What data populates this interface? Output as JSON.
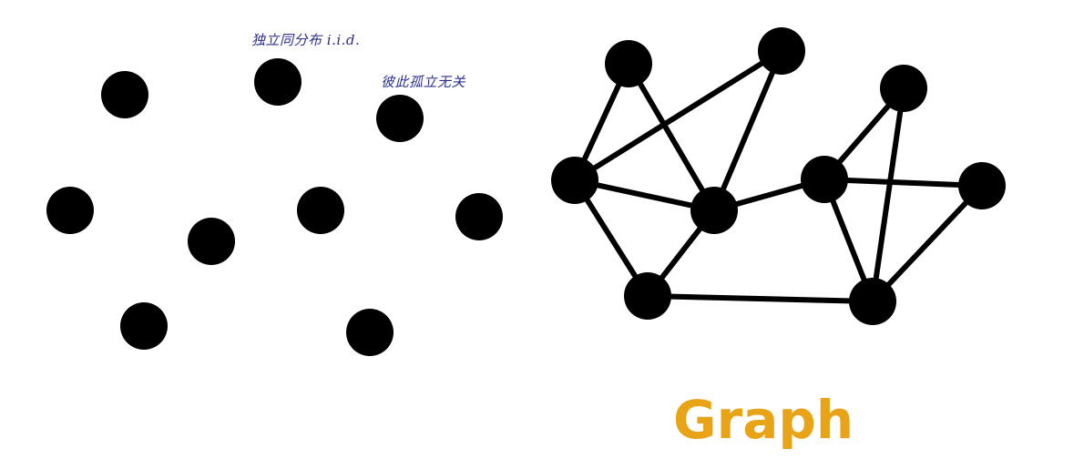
{
  "annotations": {
    "iid_note": "独立同分布 i.i.d.",
    "isolated_note": "彼此孤立无关"
  },
  "graph_label": "Graph",
  "colors": {
    "node": "#000000",
    "edge": "#000000",
    "annotation": "#2a2f8f",
    "label": "#e8a317",
    "background": "#ffffff"
  },
  "left_group": {
    "nodes": [
      "n1",
      "n2",
      "n3",
      "n4",
      "n5",
      "n6",
      "n7",
      "n8",
      "n9",
      "n10"
    ]
  },
  "right_graph": {
    "nodes": [
      "A",
      "B",
      "C",
      "D",
      "E",
      "F",
      "G",
      "H",
      "I"
    ],
    "edges": [
      [
        "A",
        "C"
      ],
      [
        "A",
        "D"
      ],
      [
        "B",
        "C"
      ],
      [
        "B",
        "D"
      ],
      [
        "C",
        "D"
      ],
      [
        "C",
        "E"
      ],
      [
        "D",
        "E"
      ],
      [
        "D",
        "F"
      ],
      [
        "E",
        "I"
      ],
      [
        "F",
        "G"
      ],
      [
        "F",
        "H"
      ],
      [
        "F",
        "I"
      ],
      [
        "G",
        "I"
      ],
      [
        "H",
        "I"
      ]
    ]
  }
}
